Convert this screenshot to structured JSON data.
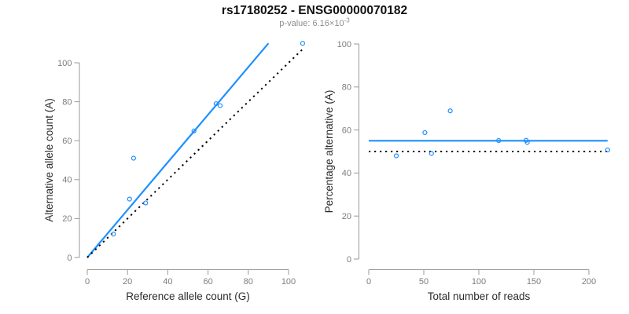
{
  "header": {
    "title": "rs17180252 - ENSG00000070182",
    "subtitle_prefix": "p-value: 6.16×10",
    "subtitle_exponent": "-3"
  },
  "colors": {
    "accent_blue": "#1E90FF",
    "reference_black": "#000000",
    "axis_line_gray": "#9a9a9a",
    "tick_label_gray": "#7d7d7d",
    "axis_title_dark": "#2b2b2b",
    "background": "#ffffff"
  },
  "chart_data": [
    {
      "id": "allele-count-scatter",
      "type": "scatter",
      "title": "",
      "xlabel": "Reference allele count (G)",
      "ylabel": "Alternative allele count (A)",
      "xlim": [
        0,
        108
      ],
      "ylim": [
        0,
        110
      ],
      "xticks": [
        0,
        20,
        40,
        60,
        80,
        100
      ],
      "yticks": [
        0,
        20,
        40,
        60,
        80,
        100
      ],
      "grid": false,
      "legend": "none",
      "points": [
        {
          "x": 13,
          "y": 12
        },
        {
          "x": 21,
          "y": 30
        },
        {
          "x": 29,
          "y": 28
        },
        {
          "x": 23,
          "y": 51
        },
        {
          "x": 53,
          "y": 65
        },
        {
          "x": 64,
          "y": 79
        },
        {
          "x": 66,
          "y": 78
        },
        {
          "x": 107,
          "y": 110
        }
      ],
      "lines": [
        {
          "name": "fitted-ratio-line",
          "style": "solid",
          "color_key": "accent_blue",
          "from": [
            0,
            0
          ],
          "to": [
            90,
            110
          ]
        },
        {
          "name": "identity-line",
          "style": "dotted",
          "color_key": "reference_black",
          "from": [
            0,
            0
          ],
          "to": [
            108,
            108
          ]
        }
      ]
    },
    {
      "id": "percentage-coverage-scatter",
      "type": "scatter",
      "title": "",
      "xlabel": "Total number of reads",
      "ylabel": "Percentage alternative (A)",
      "xlim": [
        0,
        218
      ],
      "ylim": [
        0,
        100
      ],
      "xticks": [
        0,
        50,
        100,
        150,
        200
      ],
      "yticks": [
        0,
        20,
        40,
        60,
        80,
        100
      ],
      "grid": false,
      "legend": "none",
      "points": [
        {
          "x": 25,
          "y": 48.0
        },
        {
          "x": 51,
          "y": 58.8
        },
        {
          "x": 57,
          "y": 49.1
        },
        {
          "x": 74,
          "y": 68.9
        },
        {
          "x": 118,
          "y": 55.1
        },
        {
          "x": 143,
          "y": 55.2
        },
        {
          "x": 144,
          "y": 54.2
        },
        {
          "x": 217,
          "y": 50.7
        }
      ],
      "lines": [
        {
          "name": "fitted-percentage-line",
          "style": "solid",
          "color_key": "accent_blue",
          "from": [
            0,
            55
          ],
          "to": [
            217,
            55
          ]
        },
        {
          "name": "balanced-percentage-line",
          "style": "dotted",
          "color_key": "reference_black",
          "from": [
            0,
            50
          ],
          "to": [
            217,
            50
          ]
        }
      ]
    }
  ]
}
